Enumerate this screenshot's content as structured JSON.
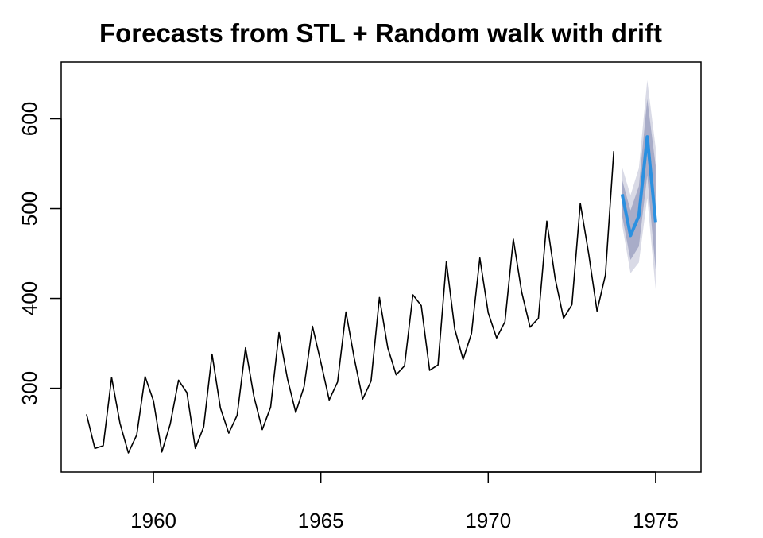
{
  "chart_data": {
    "type": "line",
    "title": "Forecasts from STL +  Random walk with drift",
    "xlabel": "",
    "ylabel": "",
    "xlim": [
      1957.6,
      1976.0
    ],
    "ylim": [
      220,
      650
    ],
    "x_ticks": [
      {
        "value": 1960,
        "label": "1960"
      },
      {
        "value": 1965,
        "label": "1965"
      },
      {
        "value": 1970,
        "label": "1970"
      },
      {
        "value": 1975,
        "label": "1975"
      }
    ],
    "y_ticks": [
      {
        "value": 300,
        "label": "300"
      },
      {
        "value": 400,
        "label": "400"
      },
      {
        "value": 500,
        "label": "500"
      },
      {
        "value": 600,
        "label": "600"
      }
    ],
    "grid": false,
    "legend": "none",
    "colors": {
      "history": "#000000",
      "forecast": "#2b90e0",
      "band_80": "#a8acc8",
      "band_95": "#d9dae6"
    },
    "series": [
      {
        "kind": "history",
        "start": 1958.0,
        "frequency": 4,
        "values": [
          271,
          233,
          236,
          312,
          261,
          228,
          248,
          313,
          286,
          229,
          260,
          309,
          295,
          233,
          257,
          338,
          278,
          250,
          270,
          345,
          291,
          254,
          279,
          362,
          311,
          273,
          302,
          369,
          329,
          287,
          307,
          385,
          333,
          288,
          308,
          401,
          345,
          315,
          325,
          404,
          392,
          320,
          326,
          441,
          366,
          332,
          361,
          445,
          384,
          356,
          374,
          466,
          407,
          368,
          378,
          486,
          422,
          378,
          393,
          506,
          450,
          386,
          426,
          564
        ]
      },
      {
        "kind": "forecast",
        "start": 1974.0,
        "frequency": 4,
        "values": [
          516,
          470,
          492,
          580,
          485
        ],
        "lo80": [
          492,
          443,
          458,
          537,
          432
        ],
        "hi80": [
          532,
          498,
          525,
          622,
          548
        ],
        "lo95": [
          482,
          428,
          440,
          512,
          410
        ],
        "hi95": [
          546,
          515,
          545,
          643,
          568
        ]
      }
    ]
  }
}
